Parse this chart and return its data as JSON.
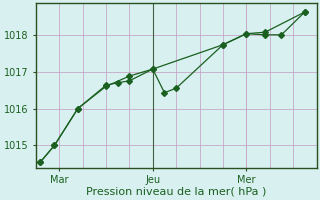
{
  "xlabel": "Pression niveau de la mer( hPa )",
  "background_color": "#d8f0f0",
  "grid_color": "#c8a8c8",
  "line_color": "#1a6020",
  "ylim": [
    1014.4,
    1018.85
  ],
  "yticks": [
    1015,
    1016,
    1017,
    1018
  ],
  "xlim": [
    0,
    12
  ],
  "x_ticks": [
    1,
    5,
    9
  ],
  "x_tick_labels": [
    "Mar",
    "Jeu",
    "Mer"
  ],
  "vline_x": 5,
  "vline2_x": 9,
  "num_minor_vlines": 12,
  "line1_x": [
    0.2,
    0.8,
    1.8,
    3.0,
    3.5,
    4.0,
    5.0,
    5.5,
    6.0,
    8.0,
    9.0,
    9.8,
    10.5,
    11.5
  ],
  "line1_y": [
    1014.55,
    1015.0,
    1016.0,
    1016.63,
    1016.7,
    1016.75,
    1017.07,
    1016.43,
    1016.55,
    1017.73,
    1018.03,
    1018.0,
    1018.0,
    1018.62
  ],
  "line2_x": [
    0.2,
    0.8,
    1.8,
    3.0,
    4.0,
    5.0,
    8.0,
    9.0,
    9.8,
    11.5
  ],
  "line2_y": [
    1014.55,
    1015.0,
    1016.0,
    1016.6,
    1016.88,
    1017.07,
    1017.73,
    1018.03,
    1018.07,
    1018.62
  ],
  "tick_fontsize": 7,
  "xlabel_fontsize": 8,
  "spine_color": "#2a5020",
  "marker_size": 3.0
}
